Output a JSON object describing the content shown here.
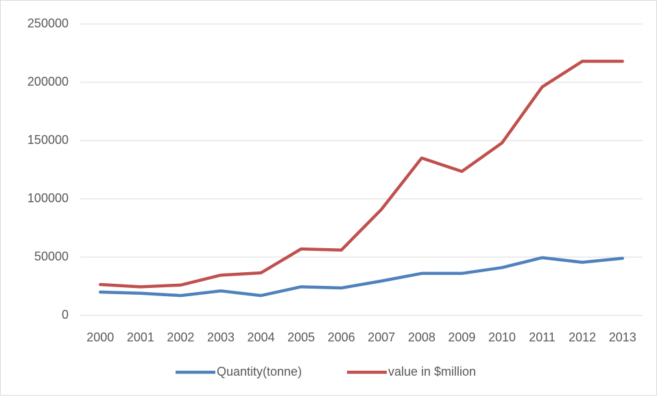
{
  "chart_data": {
    "type": "line",
    "categories": [
      "2000",
      "2001",
      "2002",
      "2003",
      "2004",
      "2005",
      "2006",
      "2007",
      "2008",
      "2009",
      "2010",
      "2011",
      "2012",
      "2013"
    ],
    "series": [
      {
        "name": "Quantity(tonne)",
        "color": "#4f81bd",
        "values": [
          20000,
          19000,
          17000,
          21000,
          17000,
          24500,
          23500,
          29500,
          36000,
          36000,
          41000,
          49500,
          45500,
          49000
        ]
      },
      {
        "name": "value in $million",
        "color": "#c0504d",
        "values": [
          26500,
          24500,
          26000,
          34500,
          36500,
          57000,
          56000,
          91000,
          135000,
          123500,
          148000,
          196000,
          218000,
          218000
        ]
      }
    ],
    "ylim": [
      0,
      250000
    ],
    "yticks": [
      0,
      50000,
      100000,
      150000,
      200000,
      250000
    ],
    "grid": true,
    "legend": "bottom"
  }
}
